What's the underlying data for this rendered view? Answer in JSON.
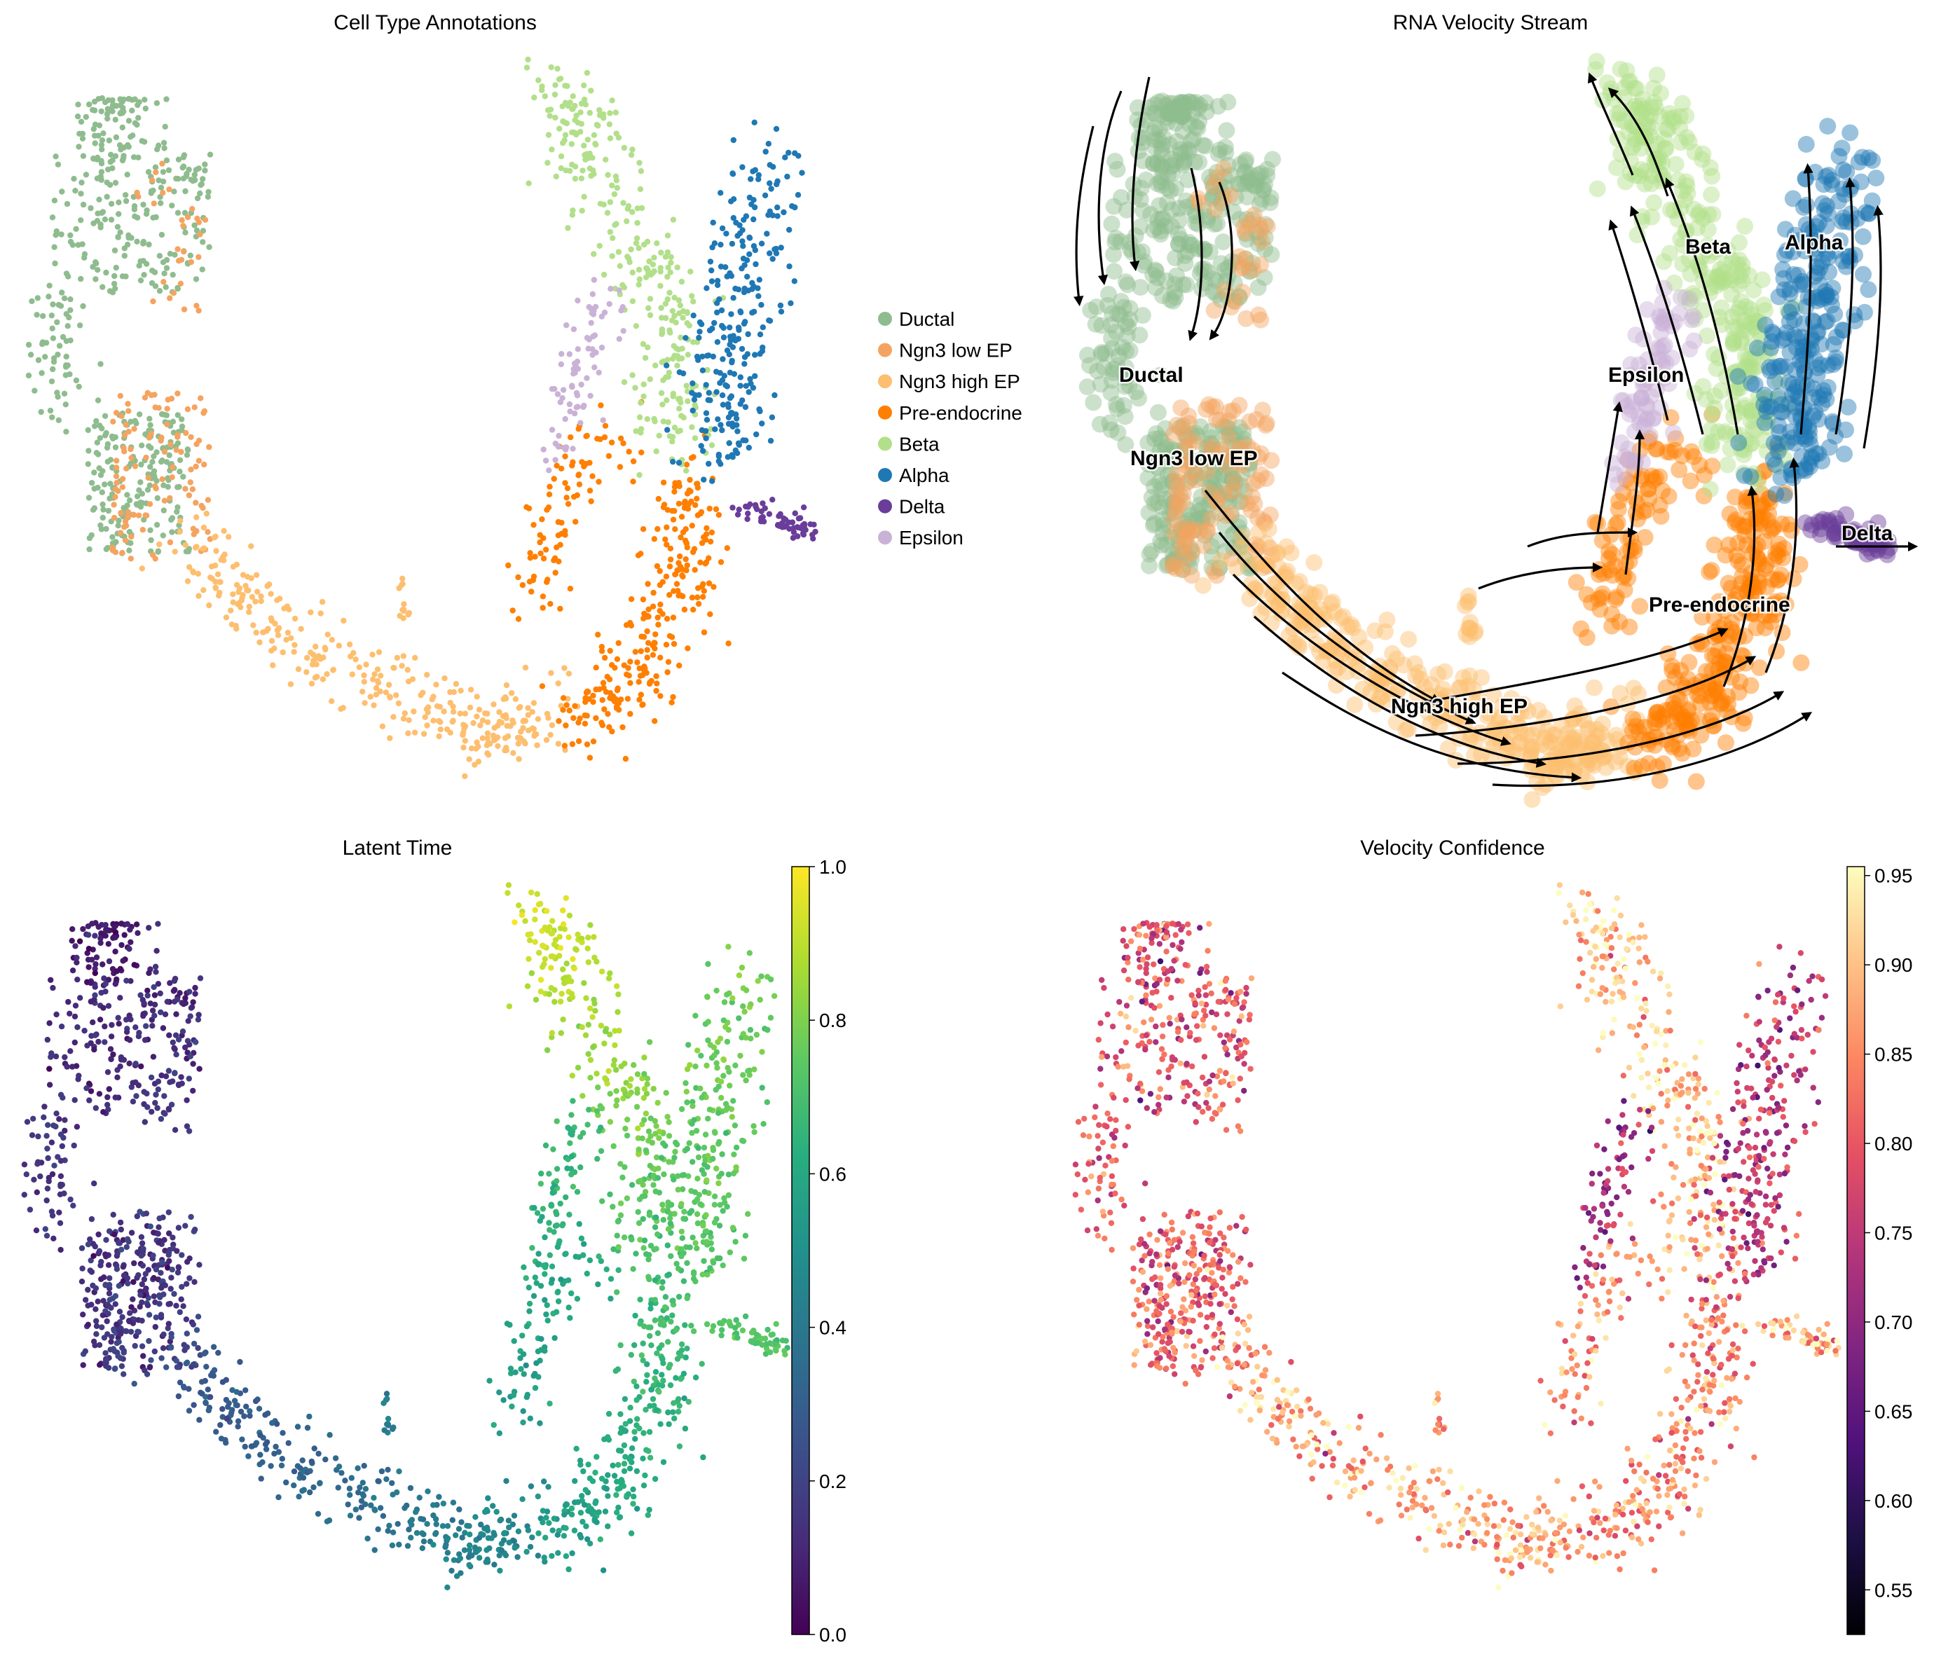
{
  "chart_data": [
    {
      "type": "scatter",
      "title": "Cell Type Annotations",
      "legend_position": "right",
      "legend": [
        {
          "name": "Ductal",
          "color": "#8fbc8f"
        },
        {
          "name": "Ngn3 low EP",
          "color": "#f4a460"
        },
        {
          "name": "Ngn3 high EP",
          "color": "#fdbf6f"
        },
        {
          "name": "Pre-endocrine",
          "color": "#ff7f00"
        },
        {
          "name": "Beta",
          "color": "#b2df8a"
        },
        {
          "name": "Alpha",
          "color": "#1f78b4"
        },
        {
          "name": "Delta",
          "color": "#6a3d9a"
        },
        {
          "name": "Epsilon",
          "color": "#cab2d6"
        }
      ]
    },
    {
      "type": "scatter",
      "title": "RNA Velocity Stream",
      "cluster_labels": [
        "Ductal",
        "Ngn3 low EP",
        "Ngn3 high EP",
        "Pre-endocrine",
        "Beta",
        "Alpha",
        "Delta",
        "Epsilon"
      ]
    },
    {
      "type": "scatter",
      "title": "Latent Time",
      "colorbar": {
        "colormap": "viridis",
        "min": 0.0,
        "max": 1.0,
        "ticks": [
          "0.0",
          "0.2",
          "0.4",
          "0.6",
          "0.8",
          "1.0"
        ]
      }
    },
    {
      "type": "scatter",
      "title": "Velocity Confidence",
      "colorbar": {
        "colormap": "magma",
        "min": 0.525,
        "max": 0.955,
        "ticks": [
          "0.55",
          "0.60",
          "0.65",
          "0.70",
          "0.75",
          "0.80",
          "0.85",
          "0.90",
          "0.95"
        ]
      }
    }
  ]
}
